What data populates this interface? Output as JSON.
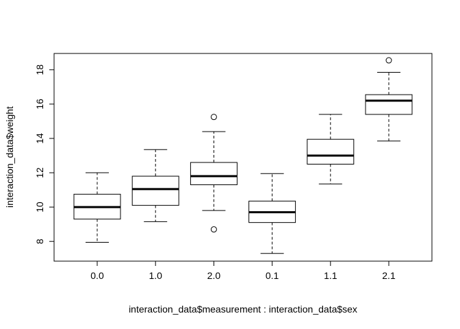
{
  "chart_data": {
    "type": "boxplot",
    "title": "",
    "xlabel": "interaction_data$measurement : interaction_data$sex",
    "ylabel": "interaction_data$weight",
    "ylim": [
      6.85,
      18.95
    ],
    "yticks": [
      8,
      10,
      12,
      14,
      16,
      18
    ],
    "grid": false,
    "colors": {
      "line": "#000000",
      "box_fill": "#ffffff",
      "background": "#ffffff"
    },
    "categories": [
      "0.0",
      "1.0",
      "2.0",
      "0.1",
      "1.1",
      "2.1"
    ],
    "boxes": [
      {
        "label": "0.0",
        "whisker_low": 7.95,
        "q1": 9.3,
        "median": 10.0,
        "q3": 10.75,
        "whisker_high": 12.0,
        "outliers": []
      },
      {
        "label": "1.0",
        "whisker_low": 9.15,
        "q1": 10.1,
        "median": 11.05,
        "q3": 11.8,
        "whisker_high": 13.35,
        "outliers": []
      },
      {
        "label": "2.0",
        "whisker_low": 9.8,
        "q1": 11.3,
        "median": 11.8,
        "q3": 12.6,
        "whisker_high": 14.4,
        "outliers": [
          15.25,
          8.7
        ]
      },
      {
        "label": "0.1",
        "whisker_low": 7.3,
        "q1": 9.1,
        "median": 9.7,
        "q3": 10.35,
        "whisker_high": 11.95,
        "outliers": []
      },
      {
        "label": "1.1",
        "whisker_low": 11.35,
        "q1": 12.5,
        "median": 13.0,
        "q3": 13.95,
        "whisker_high": 15.4,
        "outliers": []
      },
      {
        "label": "2.1",
        "whisker_low": 13.85,
        "q1": 15.4,
        "median": 16.2,
        "q3": 16.55,
        "whisker_high": 17.85,
        "outliers": [
          18.55
        ]
      }
    ]
  }
}
